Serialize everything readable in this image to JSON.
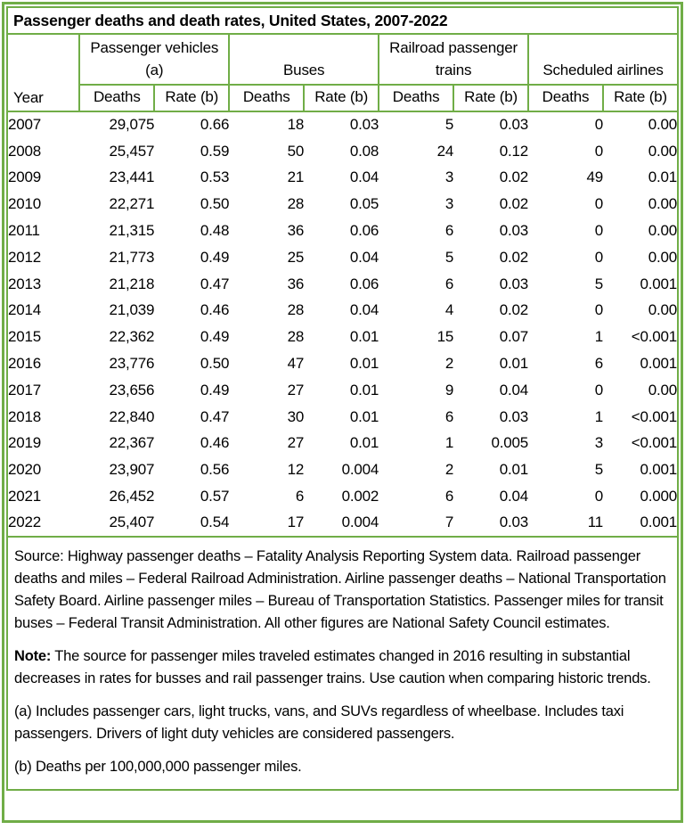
{
  "colors": {
    "border_green": "#70AD47",
    "text": "#000000",
    "background": "#FFFFFF"
  },
  "chart_data": {
    "type": "table",
    "title": "Passenger deaths and death rates, United States, 2007-2022",
    "header": {
      "year_label": "Year",
      "groups": [
        {
          "label": "Passenger vehicles (a)"
        },
        {
          "label": "Buses"
        },
        {
          "label": "Railroad passenger trains"
        },
        {
          "label": "Scheduled airlines"
        }
      ],
      "deaths_label": "Deaths",
      "rate_label": "Rate (b)"
    },
    "columns": [
      "Year",
      "Passenger vehicles (a) Deaths",
      "Passenger vehicles (a) Rate (b)",
      "Buses Deaths",
      "Buses Rate (b)",
      "Railroad passenger trains Deaths",
      "Railroad passenger trains Rate (b)",
      "Scheduled airlines Deaths",
      "Scheduled airlines Rate (b)"
    ],
    "rows": [
      [
        "2007",
        "29,075",
        "0.66",
        "18",
        "0.03",
        "5",
        "0.03",
        "0",
        "0.00"
      ],
      [
        "2008",
        "25,457",
        "0.59",
        "50",
        "0.08",
        "24",
        "0.12",
        "0",
        "0.00"
      ],
      [
        "2009",
        "23,441",
        "0.53",
        "21",
        "0.04",
        "3",
        "0.02",
        "49",
        "0.01"
      ],
      [
        "2010",
        "22,271",
        "0.50",
        "28",
        "0.05",
        "3",
        "0.02",
        "0",
        "0.00"
      ],
      [
        "2011",
        "21,315",
        "0.48",
        "36",
        "0.06",
        "6",
        "0.03",
        "0",
        "0.00"
      ],
      [
        "2012",
        "21,773",
        "0.49",
        "25",
        "0.04",
        "5",
        "0.02",
        "0",
        "0.00"
      ],
      [
        "2013",
        "21,218",
        "0.47",
        "36",
        "0.06",
        "6",
        "0.03",
        "5",
        "0.001"
      ],
      [
        "2014",
        "21,039",
        "0.46",
        "28",
        "0.04",
        "4",
        "0.02",
        "0",
        "0.00"
      ],
      [
        "2015",
        "22,362",
        "0.49",
        "28",
        "0.01",
        "15",
        "0.07",
        "1",
        "<0.001"
      ],
      [
        "2016",
        "23,776",
        "0.50",
        "47",
        "0.01",
        "2",
        "0.01",
        "6",
        "0.001"
      ],
      [
        "2017",
        "23,656",
        "0.49",
        "27",
        "0.01",
        "9",
        "0.04",
        "0",
        "0.00"
      ],
      [
        "2018",
        "22,840",
        "0.47",
        "30",
        "0.01",
        "6",
        "0.03",
        "1",
        "<0.001"
      ],
      [
        "2019",
        "22,367",
        "0.46",
        "27",
        "0.01",
        "1",
        "0.005",
        "3",
        "<0.001"
      ],
      [
        "2020",
        "23,907",
        "0.56",
        "12",
        "0.004",
        "2",
        "0.01",
        "5",
        "0.001"
      ],
      [
        "2021",
        "26,452",
        "0.57",
        "6",
        "0.002",
        "6",
        "0.04",
        "0",
        "0.000"
      ],
      [
        "2022",
        "25,407",
        "0.54",
        "17",
        "0.004",
        "7",
        "0.03",
        "11",
        "0.001"
      ]
    ],
    "notes": {
      "source": "Source: Highway passenger deaths – Fatality Analysis Reporting System data. Railroad passenger deaths and miles – Federal Railroad Administration. Airline passenger deaths – National Transportation Safety Board. Airline passenger miles – Bureau of Transportation Statistics. Passenger miles for transit buses – Federal Transit Administration. All other figures are National Safety Council estimates.",
      "note_label": "Note:",
      "note_text": " The source for passenger miles traveled estimates changed in 2016 resulting in substantial decreases in rates for busses and rail passenger trains. Use caution when comparing historic trends.",
      "footnote_a": "(a) Includes passenger cars, light trucks, vans, and SUVs regardless of wheelbase. Includes taxi passengers.  Drivers of light duty vehicles are considered passengers.",
      "footnote_b": "(b) Deaths per 100,000,000 passenger miles."
    }
  }
}
